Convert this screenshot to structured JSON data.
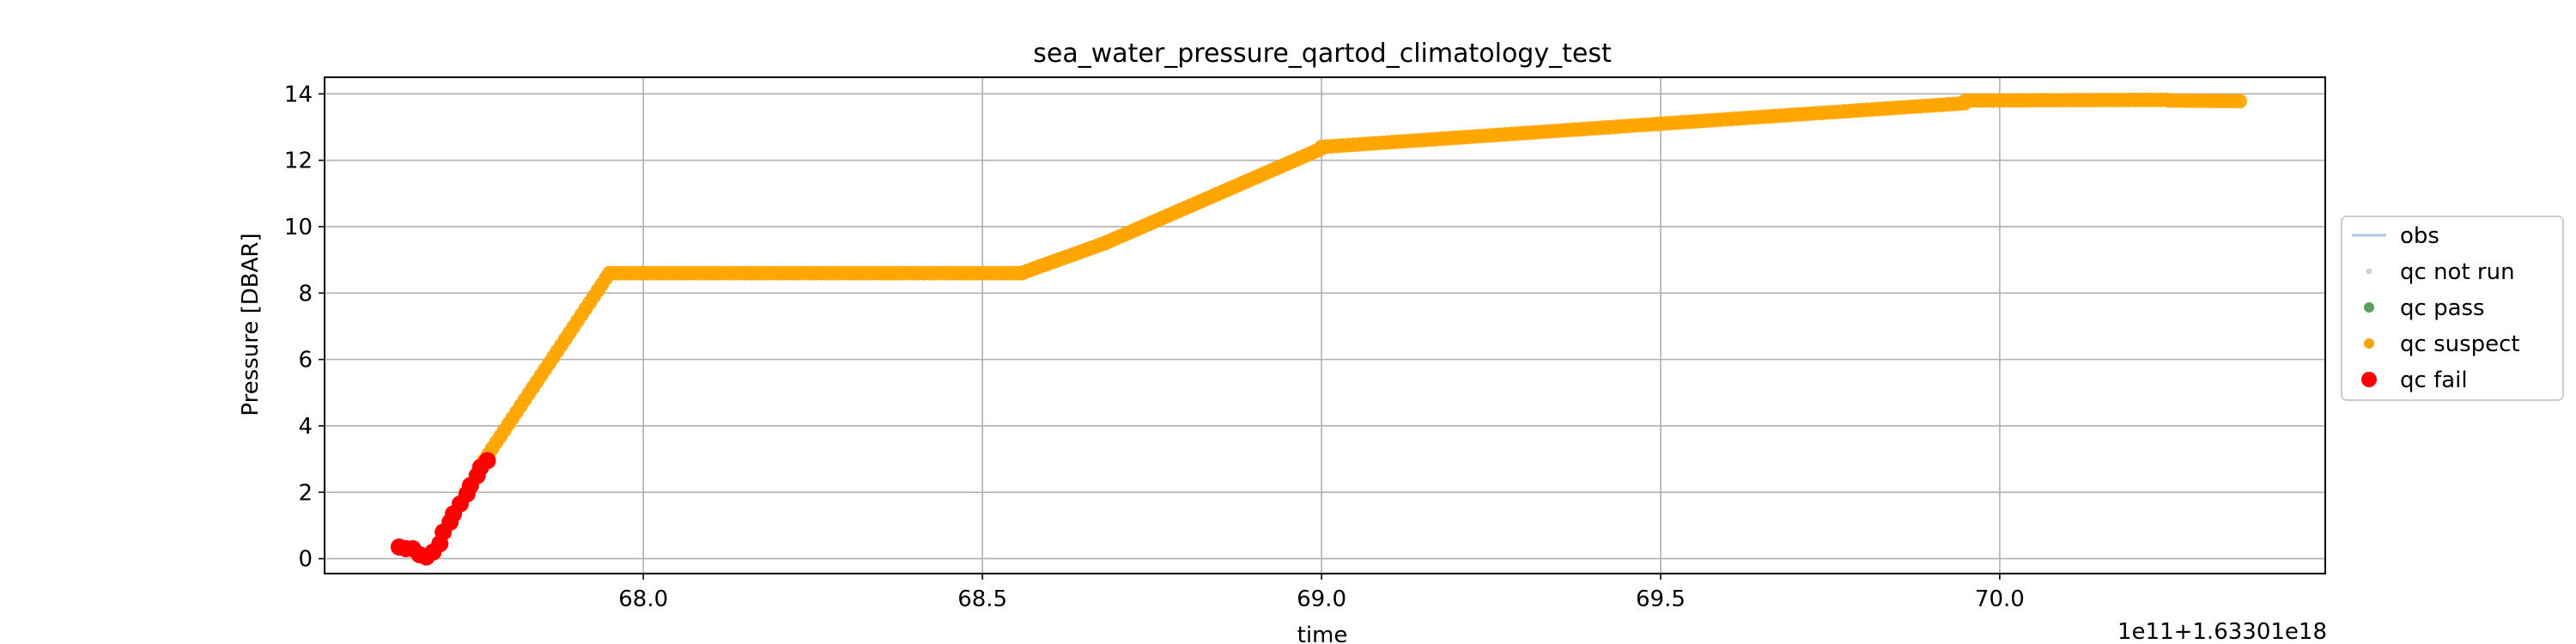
{
  "chart_data": {
    "type": "scatter",
    "title": "sea_water_pressure_qartod_climatology_test",
    "xlabel": "time",
    "ylabel": "Pressure [DBAR]",
    "x_offset_text": "1e11+1.63301e18",
    "xlim": [
      67.53,
      70.48
    ],
    "ylim": [
      -0.45,
      14.5
    ],
    "xticks": [
      {
        "value": 68.0,
        "label": "68.0"
      },
      {
        "value": 68.5,
        "label": "68.5"
      },
      {
        "value": 69.0,
        "label": "69.0"
      },
      {
        "value": 69.5,
        "label": "69.5"
      },
      {
        "value": 70.0,
        "label": "70.0"
      }
    ],
    "yticks": [
      {
        "value": 0,
        "label": "0"
      },
      {
        "value": 2,
        "label": "2"
      },
      {
        "value": 4,
        "label": "4"
      },
      {
        "value": 6,
        "label": "6"
      },
      {
        "value": 8,
        "label": "8"
      },
      {
        "value": 10,
        "label": "10"
      },
      {
        "value": 12,
        "label": "12"
      },
      {
        "value": 14,
        "label": "14"
      }
    ],
    "grid": true,
    "legend_position": "right",
    "series": [
      {
        "name": "obs",
        "kind": "line",
        "color": "#a6c8e6",
        "points": [
          [
            67.64,
            0.35
          ],
          [
            67.66,
            0.3
          ],
          [
            67.67,
            0.05
          ],
          [
            67.7,
            0.6
          ],
          [
            67.74,
            2.0
          ],
          [
            67.77,
            2.95
          ],
          [
            67.83,
            4.8
          ],
          [
            67.9,
            7.0
          ],
          [
            67.95,
            8.6
          ],
          [
            68.55,
            8.6
          ],
          [
            68.62,
            9.2
          ],
          [
            69.0,
            12.35
          ],
          [
            69.2,
            12.6
          ],
          [
            69.5,
            13.1
          ],
          [
            69.95,
            13.8
          ],
          [
            70.15,
            13.85
          ],
          [
            70.36,
            13.8
          ]
        ]
      },
      {
        "name": "qc not run",
        "kind": "marker",
        "color": "#d3d3d3",
        "points": []
      },
      {
        "name": "qc pass",
        "kind": "marker",
        "color": "#5aa05a",
        "points": []
      },
      {
        "name": "qc suspect",
        "kind": "marker",
        "color": "#ffa500",
        "segments": [
          {
            "x0": 67.765,
            "x1": 67.95,
            "y0": 2.95,
            "y1": 8.6,
            "step": 0.006
          },
          {
            "x0": 67.95,
            "x1": 68.56,
            "y0": 8.6,
            "y1": 8.6,
            "step": 0.008
          },
          {
            "x0": 68.56,
            "x1": 68.68,
            "y0": 8.62,
            "y1": 9.5,
            "step": 0.006
          },
          {
            "x0": 68.68,
            "x1": 69.0,
            "y0": 9.5,
            "y1": 12.35,
            "step": 0.006
          },
          {
            "x0": 69.0,
            "x1": 69.5,
            "y0": 12.4,
            "y1": 13.1,
            "step": 0.008
          },
          {
            "x0": 69.5,
            "x1": 69.95,
            "y0": 13.1,
            "y1": 13.72,
            "step": 0.008
          },
          {
            "x0": 69.95,
            "x1": 70.25,
            "y0": 13.8,
            "y1": 13.82,
            "step": 0.008
          },
          {
            "x0": 70.25,
            "x1": 70.36,
            "y0": 13.8,
            "y1": 13.78,
            "step": 0.008
          }
        ]
      },
      {
        "name": "qc fail",
        "kind": "marker",
        "color": "#ff0000",
        "points": [
          [
            67.64,
            0.35
          ],
          [
            67.65,
            0.3
          ],
          [
            67.66,
            0.3
          ],
          [
            67.67,
            0.12
          ],
          [
            67.68,
            0.05
          ],
          [
            67.69,
            0.2
          ],
          [
            67.7,
            0.45
          ],
          [
            67.705,
            0.8
          ],
          [
            67.715,
            1.1
          ],
          [
            67.72,
            1.35
          ],
          [
            67.73,
            1.65
          ],
          [
            67.74,
            1.95
          ],
          [
            67.745,
            2.2
          ],
          [
            67.755,
            2.5
          ],
          [
            67.76,
            2.75
          ],
          [
            67.77,
            2.95
          ]
        ]
      }
    ]
  }
}
